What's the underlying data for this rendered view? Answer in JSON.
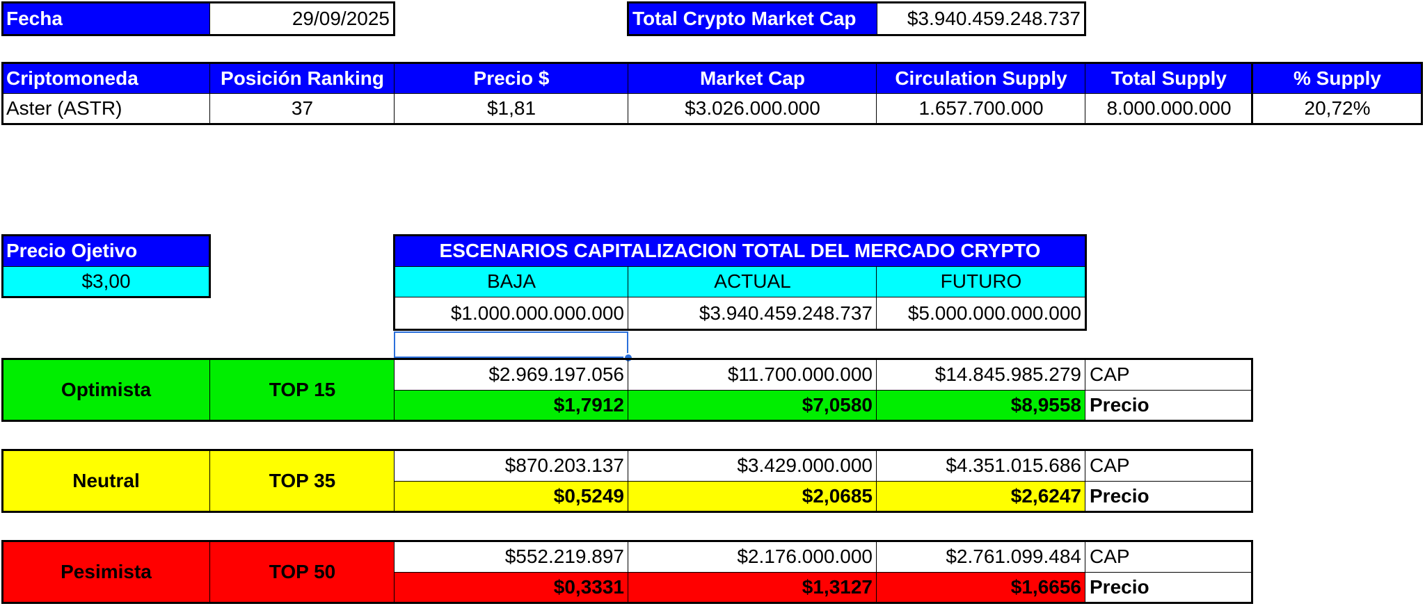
{
  "fecha": {
    "label": "Fecha",
    "value": "29/09/2025"
  },
  "market_cap_total": {
    "label": "Total Crypto Market Cap",
    "value": "$3.940.459.248.737"
  },
  "crypto_table": {
    "headers": [
      "Criptomoneda",
      "Posición Ranking",
      "Precio $",
      "Market Cap",
      "Circulation Supply",
      "Total Supply",
      "% Supply"
    ],
    "row": [
      "Aster (ASTR)",
      "37",
      "$1,81",
      "$3.026.000.000",
      "1.657.700.000",
      "8.000.000.000",
      "20,72%"
    ]
  },
  "precio_objetivo": {
    "label": "Precio Ojetivo",
    "value": "$3,00"
  },
  "escenarios": {
    "title": "ESCENARIOS CAPITALIZACION TOTAL DEL MERCADO CRYPTO",
    "columns": [
      "BAJA",
      "ACTUAL",
      "FUTURO"
    ],
    "values": [
      "$1.000.000.000.000",
      "$3.940.459.248.737",
      "$5.000.000.000.000"
    ]
  },
  "scenarios": [
    {
      "name": "Optimista",
      "top": "TOP 15",
      "color": "#00ee00",
      "cap": [
        "$2.969.197.056",
        "$11.700.000.000",
        "$14.845.985.279"
      ],
      "precio": [
        "$1,7912",
        "$7,0580",
        "$8,9558"
      ],
      "cap_label": "CAP",
      "precio_label": "Precio"
    },
    {
      "name": "Neutral",
      "top": "TOP 35",
      "color": "#ffff00",
      "cap": [
        "$870.203.137",
        "$3.429.000.000",
        "$4.351.015.686"
      ],
      "precio": [
        "$0,5249",
        "$2,0685",
        "$2,6247"
      ],
      "cap_label": "CAP",
      "precio_label": "Precio"
    },
    {
      "name": "Pesimista",
      "top": "TOP 50",
      "color": "#ff0000",
      "cap": [
        "$552.219.897",
        "$2.176.000.000",
        "$2.761.099.484"
      ],
      "precio": [
        "$0,3331",
        "$1,3127",
        "$1,6656"
      ],
      "cap_label": "CAP",
      "precio_label": "Precio"
    }
  ]
}
